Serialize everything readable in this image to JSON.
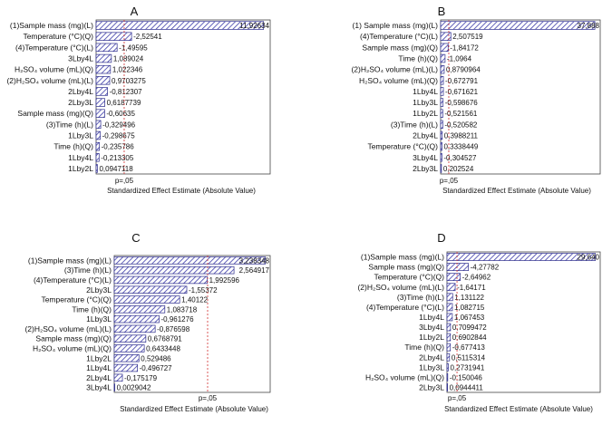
{
  "chart_data": [
    {
      "type": "bar",
      "orientation": "horizontal",
      "panel_label": "A",
      "categories": [
        "(1)Sample mass (mg)(L)",
        "Temperature (°C)(Q)",
        "(4)Temperature (°C)(L)",
        "3Lby4L",
        "H₂SO₄ volume (mL)(Q)",
        "(2)H₂SO₄ volume (mL)(L)",
        "2Lby4L",
        "2Lby3L",
        "Sample mass (mg)(Q)",
        "(3)Time (h)(L)",
        "1Lby3L",
        "Time (h)(Q)",
        "1Lby4L",
        "1Lby2L"
      ],
      "values": [
        11.92634,
        2.52541,
        1.49595,
        1.089024,
        1.022346,
        0.9703275,
        0.812307,
        0.6187739,
        0.60635,
        0.329496,
        0.298675,
        0.235786,
        0.213305,
        0.0947118
      ],
      "value_labels": [
        "11,92634",
        "-2,52541",
        "-1,49595",
        "1,089024",
        "1,022346",
        "0,9703275",
        "-0,812307",
        "0,6187739",
        "-0,60635",
        "-0,329496",
        "-0,298675",
        "-0,235786",
        "-0,213305",
        "0,0947118"
      ],
      "xlabel": "Standardized Effect Estimate (Absolute Value)",
      "xlim": [
        0,
        12.4
      ],
      "reference_line": {
        "value": 2.0,
        "label": "p=,05"
      }
    },
    {
      "type": "bar",
      "orientation": "horizontal",
      "panel_label": "B",
      "categories": [
        "(1) Sample mass (mg)(L)",
        "(4)Temperature (°C)(L)",
        "Sample mass (mg)(Q)",
        "Time (h)(Q)",
        "(2)H₂SO₄ volume (mL)(L)",
        "H₂SO₄ volume (mL)(Q)",
        "1Lby4L",
        "1Lby3L",
        "1Lby2L",
        "(3)Time (h)(L)",
        "2Lby4L",
        "Temperature (°C)(Q)",
        "3Lby4L",
        "2Lby3L"
      ],
      "values": [
        37.888,
        2.507519,
        1.84172,
        1.0964,
        0.8790964,
        0.672791,
        0.671621,
        0.598676,
        0.521561,
        0.520582,
        0.3988211,
        0.3338449,
        0.304527,
        0.202524
      ],
      "value_labels": [
        "37,888",
        "2,507519",
        "-1,84172",
        "-1,0964",
        "0,8790964",
        "-0,672791",
        "-0,671621",
        "-0,598676",
        "-0,521561",
        "-0,520582",
        "0,3988211",
        "0,3338449",
        "-0,304527",
        "0,202524"
      ],
      "xlabel": "Standardized Effect Estimate (Absolute Value)",
      "xlim": [
        0,
        39.2
      ],
      "reference_line": {
        "value": 2.0,
        "label": "p=,05"
      }
    },
    {
      "type": "bar",
      "orientation": "horizontal",
      "panel_label": "C",
      "categories": [
        "(1)Sample mass (mg)(L)",
        "(3)Time (h)(L)",
        "(4)Temperature (°C)(L)",
        "2Lby3L",
        "Temperature (°C)(Q)",
        "Time (h)(Q)",
        "1Lby3L",
        "(2)H₂SO₄ volume (mL)(L)",
        "Sample mass (mg)(Q)",
        "H₂SO₄ volume (mL)(Q)",
        "1Lby2L",
        "1Lby4L",
        "2Lby4L",
        "3Lby4L"
      ],
      "values": [
        3.238348,
        2.564917,
        1.992596,
        1.55372,
        1.40122,
        1.083718,
        0.961276,
        0.876598,
        0.6768791,
        0.6433448,
        0.529486,
        0.496727,
        0.175179,
        0.0029042
      ],
      "value_labels": [
        "3,238348",
        "2,564917",
        "1,992596",
        "-1,55372",
        "1,40122",
        "1,083718",
        "-0,961276",
        "-0,876598",
        "0,6768791",
        "0,6433448",
        "0,529486",
        "-0,496727",
        "-0,175179",
        "0,0029042"
      ],
      "xlabel": "Standardized Effect Estimate (Absolute Value)",
      "xlim": [
        0,
        3.34
      ],
      "reference_line": {
        "value": 2.0,
        "label": "p=,05"
      }
    },
    {
      "type": "bar",
      "orientation": "horizontal",
      "panel_label": "D",
      "categories": [
        "(1)Sample mass (mg)(L)",
        "Sample mass (mg)(Q)",
        "Temperature (°C)(Q)",
        "(2)H₂SO₄ volume (mL)(L)",
        "(3)Time (h)(L)",
        "(4)Temperature (°C)(L)",
        "1Lby4L",
        "3Lby4L",
        "1Lby2L",
        "Time (h)(Q)",
        "2Lby4L",
        "1Lby3L",
        "H₂SO₄ volume (mL)(Q)",
        "2Lby3L"
      ],
      "values": [
        29.64,
        4.27782,
        2.64962,
        1.64171,
        1.131122,
        1.082715,
        1.067453,
        0.7099472,
        0.6902844,
        0.677413,
        0.5115314,
        0.2731941,
        0.150046,
        0.0944411
      ],
      "value_labels": [
        "29,640",
        "-4,27782",
        "-2,64962",
        "-1,64171",
        "1,131122",
        "1,082715",
        "1,067453",
        "0,7099472",
        "0,6902844",
        "-0,677413",
        "0,5115314",
        "0,2731941",
        "-0,150046",
        "0,0944411"
      ],
      "xlabel": "Standardized Effect Estimate (Absolute Value)",
      "xlim": [
        0,
        30.6
      ],
      "reference_line": {
        "value": 2.0,
        "label": "p=,05"
      }
    }
  ]
}
